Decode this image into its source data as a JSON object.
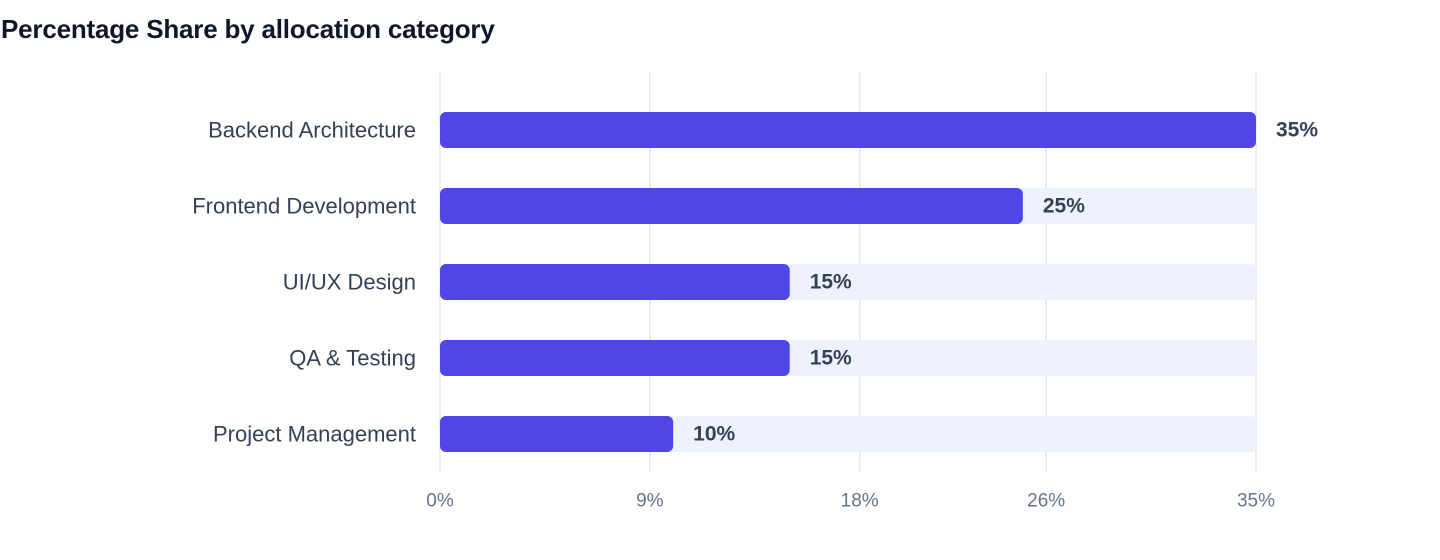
{
  "chart_data": {
    "type": "bar",
    "orientation": "horizontal",
    "title": "Percentage Share by allocation category",
    "categories": [
      "Backend Architecture",
      "Frontend Development",
      "UI/UX Design",
      "QA & Testing",
      "Project Management"
    ],
    "values": [
      35,
      25,
      15,
      15,
      10
    ],
    "value_labels": [
      "35%",
      "25%",
      "15%",
      "15%",
      "10%"
    ],
    "xlim": [
      0,
      35
    ],
    "x_ticks": [
      0,
      9,
      18,
      26,
      35
    ],
    "x_tick_labels": [
      "0%",
      "9%",
      "18%",
      "26%",
      "35%"
    ],
    "xlabel": "",
    "ylabel": "",
    "grid": true,
    "colors": {
      "bar": "#4f46e5",
      "track": "#eef2fe",
      "grid": "#e2e8f0",
      "label": "#334155",
      "tick": "#64748b",
      "value": "#334155"
    }
  }
}
